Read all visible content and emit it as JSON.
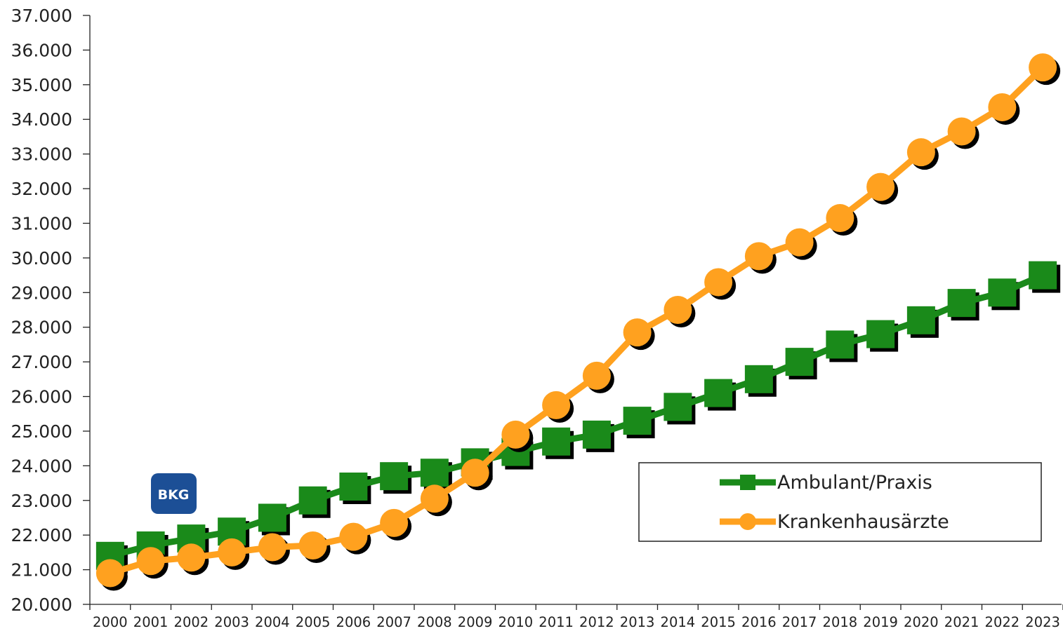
{
  "chart_data": {
    "type": "line",
    "title": "",
    "xlabel": "",
    "ylabel": "",
    "categories": [
      "2000",
      "2001",
      "2002",
      "2003",
      "2004",
      "2005",
      "2006",
      "2007",
      "2008",
      "2009",
      "2010",
      "2011",
      "2012",
      "2013",
      "2014",
      "2015",
      "2016",
      "2017",
      "2018",
      "2019",
      "2020",
      "2021",
      "2022",
      "2023"
    ],
    "ylim": [
      20000,
      37000
    ],
    "ytick_step": 1000,
    "ytick_labels": [
      "20.000",
      "21.000",
      "22.000",
      "23.000",
      "24.000",
      "25.000",
      "26.000",
      "27.000",
      "28.000",
      "29.000",
      "30.000",
      "31.000",
      "32.000",
      "33.000",
      "34.000",
      "35.000",
      "36.000",
      "37.000"
    ],
    "grid": false,
    "legend_position": "bottom-right",
    "series": [
      {
        "name": "Ambulant/Praxis",
        "color": "#1a8a1a",
        "marker": "square",
        "values": [
          21400,
          21700,
          21900,
          22100,
          22500,
          23000,
          23400,
          23700,
          23800,
          24100,
          24400,
          24700,
          24900,
          25300,
          25700,
          26100,
          26500,
          27000,
          27500,
          27800,
          28200,
          28700,
          29000,
          29500
        ]
      },
      {
        "name": "Krankenhausärzte",
        "color": "#ffa11f",
        "marker": "circle",
        "values": [
          20900,
          21250,
          21350,
          21500,
          21650,
          21700,
          21950,
          22350,
          23050,
          23800,
          24900,
          25750,
          26600,
          27850,
          28500,
          29300,
          30050,
          30450,
          31150,
          32050,
          33050,
          33650,
          34350,
          35500
        ]
      }
    ]
  },
  "logo": {
    "text": "BKG",
    "color": "#1c4f96"
  }
}
